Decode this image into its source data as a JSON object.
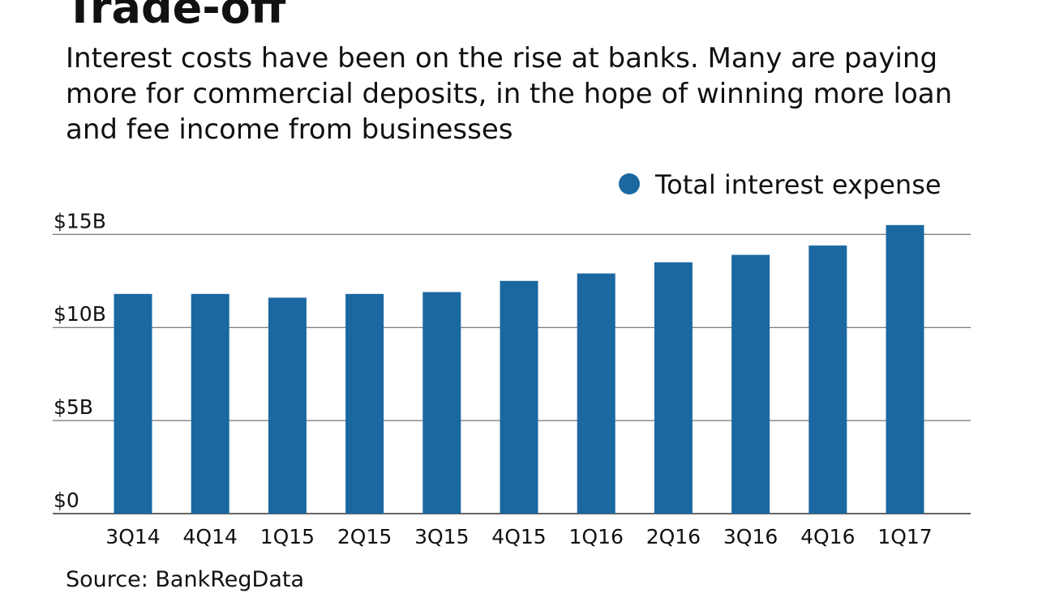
{
  "chart_data": {
    "type": "bar",
    "title": "Trade-off",
    "subtitle": "Interest costs have been on the rise at banks. Many are paying more for commercial deposits, in the hope of winning more loan and fee income from businesses",
    "categories": [
      "3Q14",
      "4Q14",
      "1Q15",
      "2Q15",
      "3Q15",
      "4Q15",
      "1Q16",
      "2Q16",
      "3Q16",
      "4Q16",
      "1Q17"
    ],
    "series": [
      {
        "name": "Total interest expense",
        "color": "#1b68a0",
        "values": [
          11.8,
          11.8,
          11.6,
          11.8,
          11.9,
          12.5,
          12.9,
          13.5,
          13.9,
          14.4,
          15.5
        ]
      }
    ],
    "yticks": [
      0,
      5,
      10,
      15
    ],
    "ytick_labels": [
      "$0",
      "$5B",
      "$10B",
      "$15B"
    ],
    "ylim": [
      0,
      15
    ],
    "grid": true,
    "legend_position": "top-right",
    "source": "Source: BankRegData"
  }
}
